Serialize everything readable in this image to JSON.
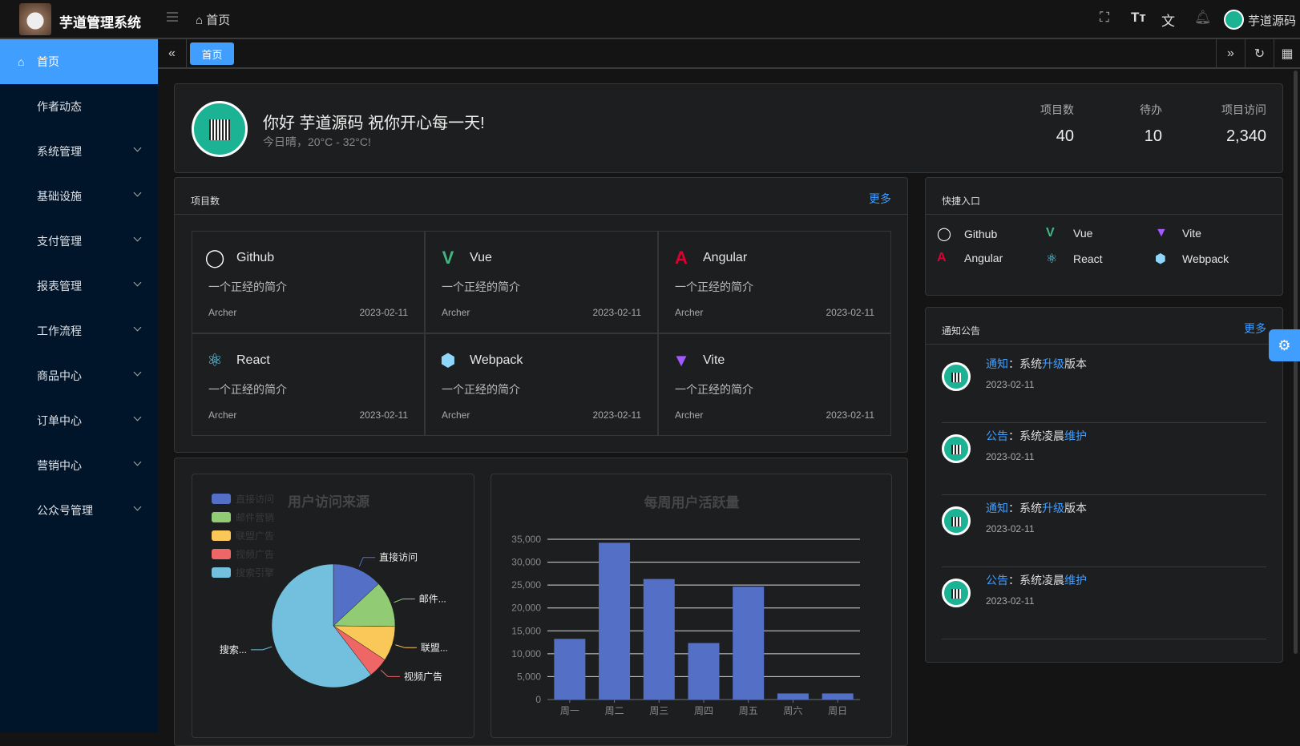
{
  "header": {
    "app_title": "芋道管理系统",
    "breadcrumb": "首页",
    "username": "芋道源码",
    "icons": [
      "fullscreen-icon",
      "font-size-icon",
      "translate-icon",
      "bell-icon"
    ]
  },
  "sidebar": {
    "items": [
      {
        "label": "首页",
        "active": true
      },
      {
        "label": "作者动态"
      },
      {
        "label": "系统管理"
      },
      {
        "label": "基础设施"
      },
      {
        "label": "支付管理"
      },
      {
        "label": "报表管理"
      },
      {
        "label": "工作流程"
      },
      {
        "label": "商品中心"
      },
      {
        "label": "订单中心"
      },
      {
        "label": "营销中心"
      },
      {
        "label": "公众号管理"
      }
    ]
  },
  "tabs": [
    {
      "label": "首页",
      "active": true
    }
  ],
  "welcome": {
    "greeting": "你好 芋道源码 祝你开心每一天!",
    "weather": "今日晴，20°C - 32°C!",
    "stats": [
      {
        "label": "项目数",
        "value": "40"
      },
      {
        "label": "待办",
        "value": "10"
      },
      {
        "label": "项目访问",
        "value": "2,340"
      }
    ]
  },
  "projects": {
    "title": "项目数",
    "more": "更多",
    "items": [
      {
        "name": "Github",
        "icon": "github-icon",
        "desc": "一个正经的简介",
        "author": "Archer",
        "date": "2023-02-11"
      },
      {
        "name": "Vue",
        "icon": "vue-icon",
        "desc": "一个正经的简介",
        "author": "Archer",
        "date": "2023-02-11"
      },
      {
        "name": "Angular",
        "icon": "angular-icon",
        "desc": "一个正经的简介",
        "author": "Archer",
        "date": "2023-02-11"
      },
      {
        "name": "React",
        "icon": "react-icon",
        "desc": "一个正经的简介",
        "author": "Archer",
        "date": "2023-02-11"
      },
      {
        "name": "Webpack",
        "icon": "webpack-icon",
        "desc": "一个正经的简介",
        "author": "Archer",
        "date": "2023-02-11"
      },
      {
        "name": "Vite",
        "icon": "vite-icon",
        "desc": "一个正经的简介",
        "author": "Archer",
        "date": "2023-02-11"
      }
    ]
  },
  "shortcuts": {
    "title": "快捷入口",
    "items": [
      {
        "name": "Github"
      },
      {
        "name": "Vue"
      },
      {
        "name": "Vite"
      },
      {
        "name": "Angular"
      },
      {
        "name": "React"
      },
      {
        "name": "Webpack"
      }
    ]
  },
  "notices": {
    "title": "通知公告",
    "more": "更多",
    "items": [
      {
        "type": "通知",
        "sep": "：",
        "p1": "系统",
        "hl": "升级",
        "p2": "版本",
        "date": "2023-02-11"
      },
      {
        "type": "公告",
        "sep": "：",
        "p1": "系统凌晨",
        "hl": "维护",
        "p2": "",
        "date": "2023-02-11"
      },
      {
        "type": "通知",
        "sep": "：",
        "p1": "系统",
        "hl": "升级",
        "p2": "版本",
        "date": "2023-02-11"
      },
      {
        "type": "公告",
        "sep": "：",
        "p1": "系统凌晨",
        "hl": "维护",
        "p2": "",
        "date": "2023-02-11"
      }
    ]
  },
  "chart_data": [
    {
      "type": "pie",
      "title": "用户访问来源",
      "legend": "top-left",
      "categories": [
        "直接访问",
        "邮件营销",
        "联盟广告",
        "视频广告",
        "搜索引擎"
      ],
      "slice_labels": [
        "直接访问",
        "邮件...",
        "联盟...",
        "视频广告",
        "搜索..."
      ],
      "values": [
        335,
        310,
        234,
        135,
        1548
      ],
      "colors": [
        "#5470c6",
        "#91cc75",
        "#fac858",
        "#ee6666",
        "#73c0de"
      ]
    },
    {
      "type": "bar",
      "title": "每周用户活跃量",
      "categories": [
        "周一",
        "周二",
        "周三",
        "周四",
        "周五",
        "周六",
        "周日"
      ],
      "values": [
        13253,
        34235,
        26321,
        12340,
        24643,
        1322,
        1324
      ],
      "ylim": [
        0,
        35000
      ],
      "yticks": [
        "0",
        "5,000",
        "10,000",
        "15,000",
        "20,000",
        "25,000",
        "30,000",
        "35,000"
      ],
      "grid": true,
      "color": "#5470c6"
    }
  ]
}
